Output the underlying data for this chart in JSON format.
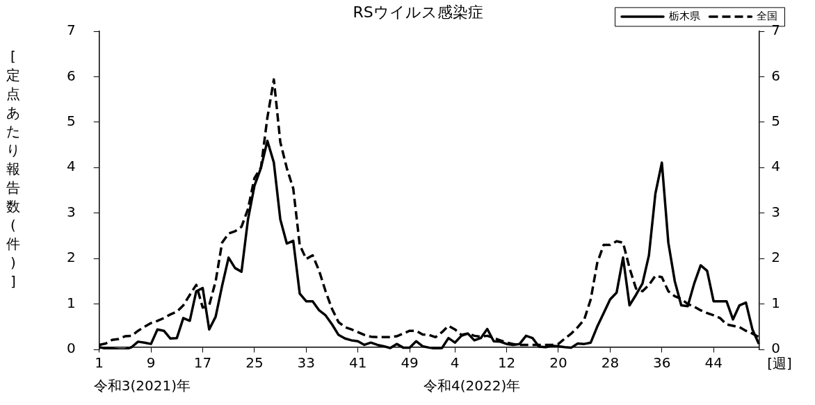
{
  "chart_data": {
    "type": "line",
    "title": "RSウイルス感染症",
    "ylabel": "[定点あたり報告数(件)]",
    "xlabel": "[週]",
    "categories": [
      "1",
      null,
      null,
      null,
      null,
      null,
      null,
      null,
      "9",
      null,
      null,
      null,
      null,
      null,
      null,
      null,
      "17",
      null,
      null,
      null,
      null,
      null,
      null,
      null,
      "25",
      null,
      null,
      null,
      null,
      null,
      null,
      null,
      "33",
      null,
      null,
      null,
      null,
      null,
      null,
      null,
      "41",
      null,
      null,
      null,
      null,
      null,
      null,
      null,
      "49",
      null,
      null,
      null,
      null,
      null,
      null,
      "4",
      null,
      null,
      null,
      null,
      null,
      null,
      null,
      "12",
      null,
      null,
      null,
      null,
      null,
      null,
      null,
      "20",
      null,
      null,
      null,
      null,
      null,
      null,
      null,
      "28",
      null,
      null,
      null,
      null,
      null,
      null,
      null,
      "36",
      null,
      null,
      null,
      null,
      null,
      null,
      null,
      "44",
      null,
      null,
      null,
      null,
      null,
      null,
      null
    ],
    "series": [
      {
        "name": "栃木県",
        "color": "#000000",
        "line_style": "solid",
        "values": [
          0.05,
          0.02,
          0.02,
          0,
          0,
          0.05,
          0.17,
          0.15,
          0.12,
          0.44,
          0.41,
          0.24,
          0.25,
          0.69,
          0.63,
          1.28,
          1.35,
          0.44,
          0.72,
          1.4,
          2.02,
          1.79,
          1.71,
          2.86,
          3.6,
          3.99,
          4.59,
          4.11,
          2.86,
          2.33,
          2.39,
          1.23,
          1.06,
          1.06,
          0.86,
          0.75,
          0.55,
          0.32,
          0.24,
          0.2,
          0.18,
          0.1,
          0.15,
          0.1,
          0.07,
          0.03,
          0.12,
          0.04,
          0.04,
          0.18,
          0.07,
          0.04,
          0.02,
          0.03,
          0.25,
          0.15,
          0.3,
          0.35,
          0.2,
          0.25,
          0.45,
          0.18,
          0.17,
          0.12,
          0.1,
          0.12,
          0.3,
          0.25,
          0.06,
          0.05,
          0.08,
          0.07,
          0.05,
          0.04,
          0.13,
          0.12,
          0.15,
          0.5,
          0.8,
          1.1,
          1.25,
          2.02,
          0.97,
          1.2,
          1.45,
          2.07,
          3.43,
          4.11,
          2.35,
          1.5,
          0.97,
          0.95,
          1.45,
          1.85,
          1.73,
          1.06,
          1.06,
          1.06,
          0.66,
          0.97,
          1.03,
          0.44,
          0.12
        ]
      },
      {
        "name": "全国",
        "color": "#000000",
        "line_style": "dashed",
        "values": [
          0.1,
          0.13,
          0.21,
          0.23,
          0.29,
          0.3,
          0.41,
          0.5,
          0.58,
          0.63,
          0.69,
          0.77,
          0.83,
          0.97,
          1.2,
          1.42,
          0.92,
          0.97,
          1.5,
          2.35,
          2.55,
          2.6,
          2.7,
          3.09,
          3.77,
          4.0,
          5.1,
          5.94,
          4.56,
          3.99,
          3.54,
          2.3,
          1.99,
          2.07,
          1.73,
          1.28,
          0.89,
          0.6,
          0.49,
          0.44,
          0.38,
          0.32,
          0.28,
          0.27,
          0.27,
          0.27,
          0.29,
          0.35,
          0.41,
          0.41,
          0.33,
          0.32,
          0.27,
          0.38,
          0.52,
          0.44,
          0.32,
          0.35,
          0.3,
          0.28,
          0.3,
          0.25,
          0.2,
          0.15,
          0.12,
          0.1,
          0.1,
          0.1,
          0.1,
          0.1,
          0.1,
          0.12,
          0.24,
          0.35,
          0.49,
          0.66,
          1.1,
          1.9,
          2.3,
          2.3,
          2.38,
          2.35,
          1.79,
          1.34,
          1.28,
          1.42,
          1.62,
          1.59,
          1.28,
          1.17,
          1.11,
          1.0,
          0.94,
          0.86,
          0.8,
          0.75,
          0.69,
          0.55,
          0.52,
          0.49,
          0.41,
          0.35,
          0.27
        ]
      }
    ],
    "ylim": [
      0,
      7
    ],
    "yticks": [
      0,
      1,
      2,
      3,
      4,
      5,
      6,
      7
    ],
    "y2lim": [
      0,
      7
    ],
    "y2ticks": [
      0,
      1,
      2,
      3,
      4,
      5,
      6,
      7
    ],
    "grid": false,
    "legend": "top right",
    "marker": "none",
    "annotations": [
      "令和3(2021)年",
      "令和4(2022)年"
    ]
  }
}
